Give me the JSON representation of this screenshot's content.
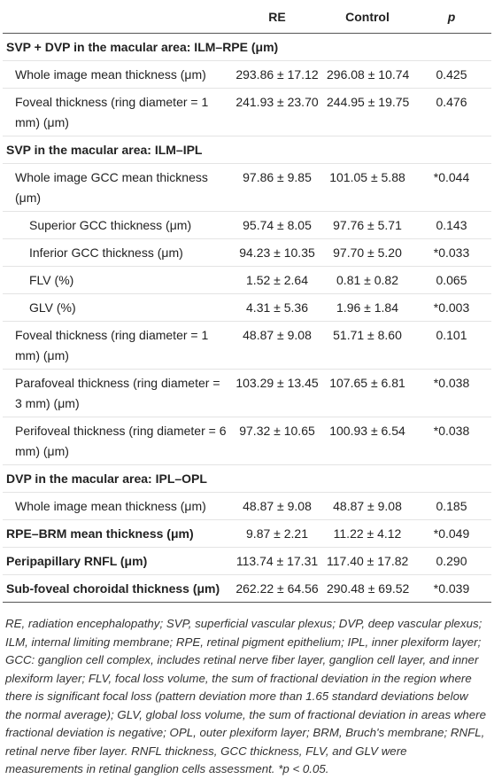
{
  "table": {
    "header": [
      "RE",
      "Control",
      "p"
    ],
    "rows": [
      {
        "style": "section",
        "label": "SVP + DVP in the macular area: ILM–RPE (μm)"
      },
      {
        "style": "indent1",
        "label": "Whole image mean thickness (μm)",
        "cells": [
          "293.86 ± 17.12",
          "296.08 ± 10.74",
          "0.425"
        ]
      },
      {
        "style": "indent1",
        "label": "Foveal thickness (ring diameter = 1 mm) (μm)",
        "cells": [
          "241.93 ± 23.70",
          "244.95 ± 19.75",
          "0.476"
        ]
      },
      {
        "style": "section",
        "label": "SVP in the macular area: ILM–IPL"
      },
      {
        "style": "indent1",
        "label": "Whole image GCC mean thickness (μm)",
        "cells": [
          "97.86 ± 9.85",
          "101.05 ± 5.88",
          "*0.044"
        ]
      },
      {
        "style": "indent2",
        "label": "Superior GCC thickness (μm)",
        "cells": [
          "95.74 ± 8.05",
          "97.76 ± 5.71",
          "0.143"
        ]
      },
      {
        "style": "indent2",
        "label": "Inferior GCC thickness (μm)",
        "cells": [
          "94.23 ± 10.35",
          "97.70 ± 5.20",
          "*0.033"
        ]
      },
      {
        "style": "indent2",
        "label": "FLV (%)",
        "cells": [
          "1.52 ± 2.64",
          "0.81 ± 0.82",
          "0.065"
        ]
      },
      {
        "style": "indent2",
        "label": "GLV (%)",
        "cells": [
          "4.31 ± 5.36",
          "1.96 ± 1.84",
          "*0.003"
        ]
      },
      {
        "style": "indent1",
        "label": "Foveal thickness (ring diameter = 1 mm) (μm)",
        "cells": [
          "48.87 ± 9.08",
          "51.71 ± 8.60",
          "0.101"
        ]
      },
      {
        "style": "indent1",
        "label": "Parafoveal thickness (ring diameter = 3 mm) (μm)",
        "cells": [
          "103.29 ± 13.45",
          "107.65 ± 6.81",
          "*0.038"
        ]
      },
      {
        "style": "indent1",
        "label": "Perifoveal thickness (ring diameter = 6 mm) (μm)",
        "cells": [
          "97.32 ± 10.65",
          "100.93 ± 6.54",
          "*0.038"
        ]
      },
      {
        "style": "section",
        "label": "DVP in the macular area: IPL–OPL"
      },
      {
        "style": "indent1",
        "label": "Whole image mean thickness (μm)",
        "cells": [
          "48.87 ± 9.08",
          "48.87 ± 9.08",
          "0.185"
        ]
      },
      {
        "style": "section",
        "label": "RPE–BRM mean thickness (μm)",
        "cells": [
          "9.87 ± 2.21",
          "11.22 ± 4.12",
          "*0.049"
        ]
      },
      {
        "style": "section",
        "label": "Peripapillary RNFL (μm)",
        "cells": [
          "113.74 ± 17.31",
          "117.40 ± 17.82",
          "0.290"
        ]
      },
      {
        "style": "section",
        "label": "Sub-foveal choroidal thickness (μm)",
        "cells": [
          "262.22 ± 64.56",
          "290.48 ± 69.52",
          "*0.039"
        ]
      }
    ],
    "footnote": "RE, radiation encephalopathy; SVP, superficial vascular plexus; DVP, deep vascular plexus; ILM, internal limiting membrane; RPE, retinal pigment epithelium; IPL, inner plexiform layer; GCC: ganglion cell complex, includes retinal nerve fiber layer, ganglion cell layer, and inner plexiform layer; FLV, focal loss volume, the sum of fractional deviation in the region where there is significant focal loss (pattern deviation more than 1.65 standard deviations below the normal average); GLV, global loss volume, the sum of fractional deviation in areas where fractional deviation is negative; OPL, outer plexiform layer; BRM, Bruch's membrane; RNFL, retinal nerve fiber layer. RNFL thickness, GCC thickness, FLV, and GLV were measurements in retinal ganglion cells assessment. *p < 0.05."
  }
}
